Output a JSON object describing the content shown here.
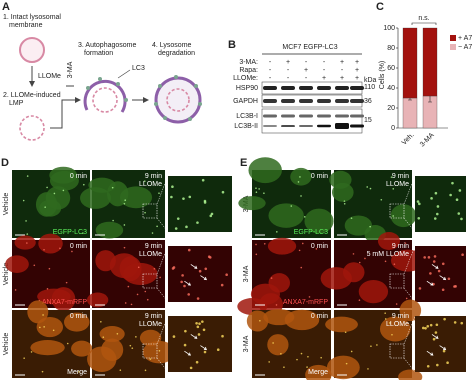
{
  "panel_a": {
    "label": "A",
    "step1": [
      "1. Intact lysosomal",
      "membrane"
    ],
    "treatment": "LLOMe",
    "step2": [
      "2. LLOMe-induced",
      "LMP"
    ],
    "inhibitor": "3-MA",
    "step3": [
      "3. Autophagosome",
      "formation"
    ],
    "marker": "LC3",
    "step4": [
      "4. Lysosome",
      "degradation"
    ]
  },
  "panel_b": {
    "label": "B",
    "cell_line": "MCF7 EGFP-LC3",
    "treatments": [
      {
        "name": "3-MA:",
        "signs": [
          "-",
          "+",
          "-",
          "-",
          "+",
          "+"
        ]
      },
      {
        "name": "Rapa:",
        "signs": [
          "-",
          "-",
          "+",
          "-",
          "-",
          "+"
        ]
      },
      {
        "name": "LLOMe:",
        "signs": [
          "-",
          "-",
          "-",
          "+",
          "+",
          "+"
        ]
      }
    ],
    "kda_label": "kDa",
    "blots": [
      "HSP90",
      "GAPDH",
      "LC3B-I",
      "LC3B-II"
    ],
    "markers": [
      110,
      36,
      15
    ]
  },
  "chart_data": {
    "type": "bar",
    "label": "C",
    "stacked": true,
    "ylabel": "Cells (%)",
    "categories": [
      "Veh.",
      "3-MA"
    ],
    "series": [
      {
        "name": "+ A7",
        "color": "#a3120f",
        "values": [
          70,
          68
        ]
      },
      {
        "name": "− A7",
        "color": "#e8b3b6",
        "values": [
          30,
          32
        ],
        "errors": [
          2,
          6
        ]
      }
    ],
    "ylim": [
      0,
      100
    ],
    "yticks": [
      0,
      20,
      40,
      60,
      80,
      100
    ],
    "annotation": "n.s."
  },
  "panel_d": {
    "label": "D",
    "rows": [
      {
        "condition": "Vehicle",
        "time1": "0 min",
        "time2": "9 min",
        "drug": "LLOMe",
        "channel": "EGFP-LC3"
      },
      {
        "condition": "Vehicle",
        "time1": "0 min",
        "time2": "9 min",
        "drug": "LLOMe",
        "channel": "ANXA7-mRFP"
      },
      {
        "condition": "Vehicle",
        "time1": "0 min",
        "time2": "9 min",
        "drug": "LLOMe",
        "channel": "Merge"
      }
    ]
  },
  "panel_e": {
    "label": "E",
    "rows": [
      {
        "condition": "3-MA",
        "time1": "0 min",
        "time2": "9 min",
        "drug": "LLOMe",
        "channel": "EGFP-LC3"
      },
      {
        "condition": "3-MA",
        "time1": "0 min",
        "time2": "9 min",
        "drug": "5 mM LLOMe",
        "channel": "ANXA7-mRFP"
      },
      {
        "condition": "3-MA",
        "time1": "0 min",
        "time2": "9 min",
        "drug": "LLOMe",
        "channel": "Merge"
      }
    ]
  }
}
